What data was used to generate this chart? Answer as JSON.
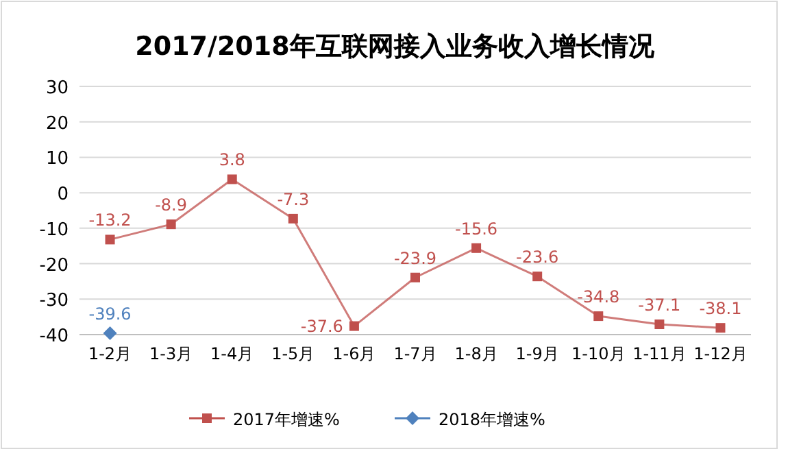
{
  "chart_data": {
    "type": "line",
    "title": "2017/2018年互联网接入业务收入增长情况",
    "categories": [
      "1-2月",
      "1-3月",
      "1-4月",
      "1-5月",
      "1-6月",
      "1-7月",
      "1-8月",
      "1-9月",
      "1-10月",
      "1-11月",
      "1-12月"
    ],
    "series": [
      {
        "name": "2017年增速%",
        "color": "#c0504d",
        "marker": "square",
        "values": [
          -13.2,
          -8.9,
          3.8,
          -7.3,
          -37.6,
          -23.9,
          -15.6,
          -23.6,
          -34.8,
          -37.1,
          -38.1
        ]
      },
      {
        "name": "2018年增速%",
        "color": "#4f81bd",
        "marker": "diamond",
        "values": [
          -39.6,
          null,
          null,
          null,
          null,
          null,
          null,
          null,
          null,
          null,
          null
        ]
      }
    ],
    "ylim": [
      -40,
      30
    ],
    "yticks": [
      -40,
      -30,
      -20,
      -10,
      0,
      10,
      20,
      30
    ],
    "grid": "y",
    "legend": "bottom",
    "data_labels": true
  }
}
